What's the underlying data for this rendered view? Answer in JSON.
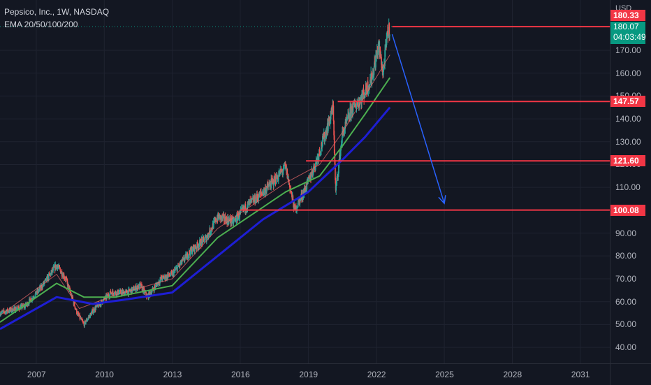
{
  "legend": {
    "symbol": "Pepsico, Inc., 1W, NASDAQ",
    "indicator": "EMA 20/50/100/200"
  },
  "price_axis": {
    "currency": "USD",
    "current_price": "180.07",
    "countdown": "04:03:49",
    "high_tag": "180.33"
  },
  "colors": {
    "background": "#131722",
    "up": "#26a69a",
    "down": "#ef5350",
    "ema20": "#f06a6a",
    "ema50": "#4caf50",
    "ema200": "#1e1ed4",
    "levels": "#f23645",
    "arrow": "#2962ff"
  },
  "chart_data": {
    "type": "line",
    "title": "Pepsico, Inc., 1W, NASDAQ",
    "xlabel": "",
    "ylabel": "",
    "y_ticks": [
      40,
      50,
      60,
      70,
      80,
      90,
      100,
      110,
      120,
      130,
      140,
      150,
      160,
      170
    ],
    "x_ticks": [
      "2007",
      "2010",
      "2013",
      "2016",
      "2019",
      "2022",
      "2025",
      "2028",
      "2031"
    ],
    "ylim": [
      33,
      192
    ],
    "xlim": [
      2005.4,
      2032.3
    ],
    "grid": true,
    "price_anchors": [
      [
        2005.4,
        55
      ],
      [
        2006.5,
        58
      ],
      [
        2007.2,
        66
      ],
      [
        2007.9,
        76
      ],
      [
        2008.3,
        70
      ],
      [
        2008.8,
        55
      ],
      [
        2009.1,
        50
      ],
      [
        2009.5,
        56
      ],
      [
        2010.3,
        64
      ],
      [
        2011.0,
        64
      ],
      [
        2011.6,
        67
      ],
      [
        2011.9,
        62
      ],
      [
        2012.5,
        70
      ],
      [
        2013.0,
        72
      ],
      [
        2013.8,
        82
      ],
      [
        2014.5,
        88
      ],
      [
        2015.0,
        97
      ],
      [
        2015.7,
        95
      ],
      [
        2016.3,
        102
      ],
      [
        2016.8,
        106
      ],
      [
        2017.5,
        113
      ],
      [
        2018.0,
        119
      ],
      [
        2018.4,
        100
      ],
      [
        2018.9,
        110
      ],
      [
        2019.3,
        120
      ],
      [
        2019.8,
        135
      ],
      [
        2020.1,
        145
      ],
      [
        2020.2,
        108
      ],
      [
        2020.5,
        133
      ],
      [
        2020.9,
        144
      ],
      [
        2021.4,
        150
      ],
      [
        2021.8,
        158
      ],
      [
        2022.1,
        172
      ],
      [
        2022.3,
        160
      ],
      [
        2022.5,
        178
      ],
      [
        2022.6,
        180
      ]
    ],
    "series": [
      {
        "name": "EMA 20",
        "x": [
          2005.4,
          2007.9,
          2008.9,
          2010.5,
          2013.0,
          2015.0,
          2018.0,
          2019.5,
          2020.5,
          2021.5,
          2022.6
        ],
        "values": [
          54,
          72,
          57,
          63,
          70,
          92,
          112,
          120,
          134,
          150,
          168
        ]
      },
      {
        "name": "EMA 50",
        "x": [
          2005.4,
          2007.9,
          2009.1,
          2010.5,
          2013.0,
          2015.0,
          2018.0,
          2019.5,
          2020.5,
          2021.5,
          2022.6
        ],
        "values": [
          51,
          68,
          62,
          62,
          67,
          88,
          108,
          115,
          128,
          142,
          158
        ]
      },
      {
        "name": "EMA 200",
        "x": [
          2005.4,
          2007.9,
          2009.5,
          2011.0,
          2013.0,
          2015.0,
          2017.0,
          2019.0,
          2020.5,
          2021.5,
          2022.6
        ],
        "values": [
          48,
          62,
          59,
          61,
          64,
          80,
          96,
          108,
          122,
          132,
          145
        ]
      }
    ],
    "levels": [
      {
        "value": 180.33,
        "x_start": 2022.7
      },
      {
        "value": 147.57,
        "x_start": 2020.3
      },
      {
        "value": 121.6,
        "x_start": 2018.9
      },
      {
        "value": 100.08,
        "x_start": 2016.0
      }
    ],
    "projection_arrow": {
      "from": [
        2022.7,
        177
      ],
      "to": [
        2025.0,
        103
      ]
    }
  }
}
